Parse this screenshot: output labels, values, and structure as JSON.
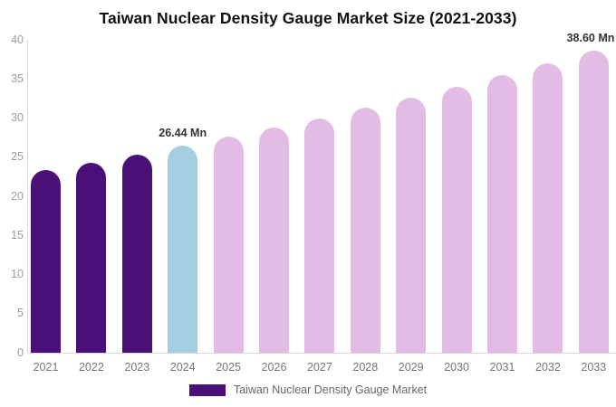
{
  "chart_data": {
    "type": "bar",
    "title": "Taiwan Nuclear Density Gauge Market Size (2021-2033)",
    "unit": "Mn",
    "categories": [
      "2021",
      "2022",
      "2023",
      "2024",
      "2025",
      "2026",
      "2027",
      "2028",
      "2029",
      "2030",
      "2031",
      "2032",
      "2033"
    ],
    "series": [
      {
        "name": "Taiwan Nuclear Density Gauge Market",
        "values": [
          23.3,
          24.3,
          25.3,
          26.44,
          27.6,
          28.8,
          30.0,
          31.3,
          32.6,
          34.0,
          35.5,
          37.0,
          38.6
        ]
      }
    ],
    "bar_colors": [
      "#4B1077",
      "#4B1077",
      "#4B1077",
      "#A6CEE3",
      "#E3BCE6",
      "#E3BCE6",
      "#E3BCE6",
      "#E3BCE6",
      "#E3BCE6",
      "#E3BCE6",
      "#E3BCE6",
      "#E3BCE6",
      "#E3BCE6"
    ],
    "segment_colors": {
      "historical": "#4B1077",
      "current_year": "#A6CEE3",
      "forecast": "#E3BCE6"
    },
    "annotations": [
      {
        "category": "2024",
        "text": "26.44 Mn"
      },
      {
        "category": "2033",
        "text": "38.60 Mn"
      }
    ],
    "ylim": [
      0,
      40
    ],
    "yticks": [
      0,
      5,
      10,
      15,
      20,
      25,
      30,
      35,
      40
    ],
    "xlabel": "",
    "ylabel": "",
    "grid": false,
    "legend_position": "bottom",
    "legend": [
      {
        "label": "Taiwan Nuclear Density Gauge Market",
        "color": "#4B1077"
      }
    ],
    "axis_colors": {
      "axis_line": "#d9d9d9",
      "ytick_label": "#9b9b9b",
      "xtick_label": "#757575",
      "annotation": "#333333"
    }
  }
}
